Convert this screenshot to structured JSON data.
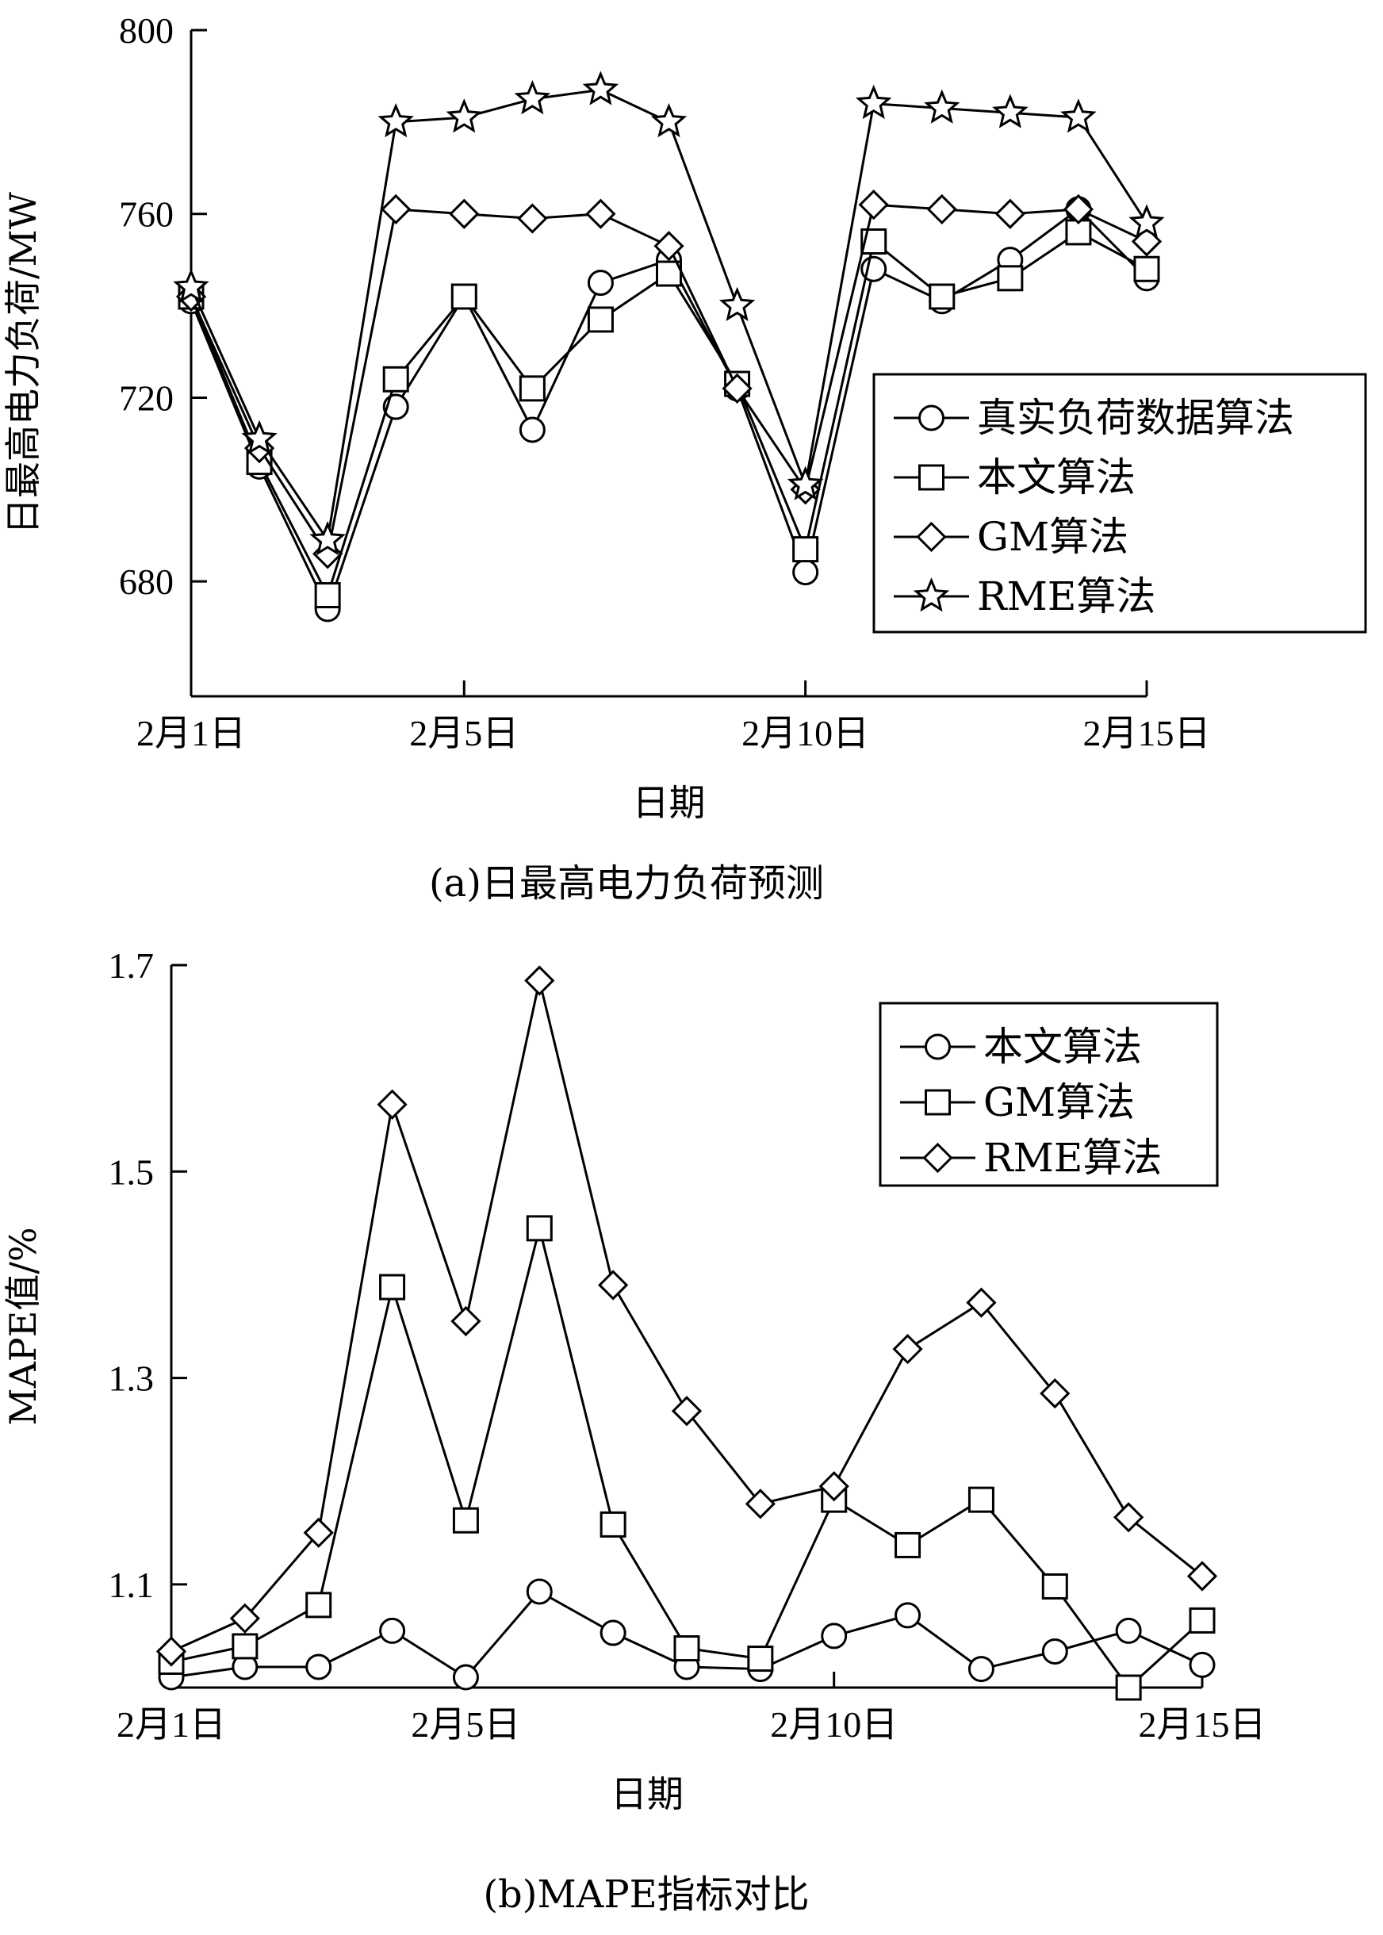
{
  "chart_data": [
    {
      "type": "line",
      "caption": "(a)日最高电力负荷预测",
      "xlabel": "日期",
      "ylabel": "日最高电力负荷/MW",
      "x": [
        1,
        2,
        3,
        4,
        5,
        6,
        7,
        8,
        9,
        10,
        11,
        12,
        13,
        14,
        15
      ],
      "xticks": [
        1,
        5,
        10,
        15
      ],
      "xtick_labels": [
        "2月1日",
        "2月5日",
        "2月10日",
        "2月15日"
      ],
      "ylim": [
        655,
        800
      ],
      "yticks": [
        680,
        720,
        760,
        800
      ],
      "ytick_labels": [
        "680",
        "720",
        "760",
        "800"
      ],
      "legend_position": "right",
      "series": [
        {
          "name": "真实负荷数据算法",
          "marker": "circle",
          "values": [
            741,
            705,
            674,
            718,
            742,
            713,
            745,
            750,
            722,
            682,
            748,
            741,
            750,
            761,
            746
          ]
        },
        {
          "name": "本文算法",
          "marker": "square",
          "values": [
            742,
            706,
            677,
            724,
            742,
            722,
            737,
            747,
            723,
            687,
            754,
            742,
            746,
            756,
            748
          ]
        },
        {
          "name": "GM算法",
          "marker": "diamond",
          "values": [
            742,
            709,
            686,
            761,
            760,
            759,
            760,
            753,
            722,
            700,
            762,
            761,
            760,
            761,
            754
          ]
        },
        {
          "name": "RME算法",
          "marker": "star",
          "values": [
            744,
            711,
            689,
            780,
            781,
            785,
            787,
            780,
            740,
            701,
            784,
            783,
            782,
            781,
            758
          ]
        }
      ]
    },
    {
      "type": "line",
      "caption": "(b)MAPE指标对比",
      "xlabel": "日期",
      "ylabel": "MAPE值/%",
      "x": [
        1,
        2,
        3,
        4,
        5,
        6,
        7,
        8,
        9,
        10,
        11,
        12,
        13,
        14,
        15
      ],
      "xticks": [
        1,
        5,
        10,
        15
      ],
      "xtick_labels": [
        "2月1日",
        "2月5日",
        "2月10日",
        "2月15日"
      ],
      "ylim": [
        1.0,
        1.7
      ],
      "yticks": [
        1.1,
        1.3,
        1.5,
        1.7
      ],
      "ytick_labels": [
        "1.1",
        "1.3",
        "1.5",
        "1.7"
      ],
      "legend_position": "top-right",
      "series": [
        {
          "name": "本文算法",
          "marker": "circle",
          "values": [
            1.01,
            1.02,
            1.02,
            1.055,
            1.01,
            1.093,
            1.053,
            1.02,
            1.018,
            1.05,
            1.07,
            1.018,
            1.035,
            1.055,
            1.022
          ]
        },
        {
          "name": "GM算法",
          "marker": "square",
          "values": [
            1.025,
            1.04,
            1.08,
            1.388,
            1.162,
            1.445,
            1.158,
            1.038,
            1.028,
            1.182,
            1.138,
            1.182,
            1.098,
            1.0,
            1.065
          ]
        },
        {
          "name": "RME算法",
          "marker": "diamond",
          "values": [
            1.035,
            1.067,
            1.15,
            1.565,
            1.355,
            1.685,
            1.39,
            1.268,
            1.178,
            1.195,
            1.328,
            1.373,
            1.285,
            1.165,
            1.108
          ]
        }
      ]
    }
  ]
}
